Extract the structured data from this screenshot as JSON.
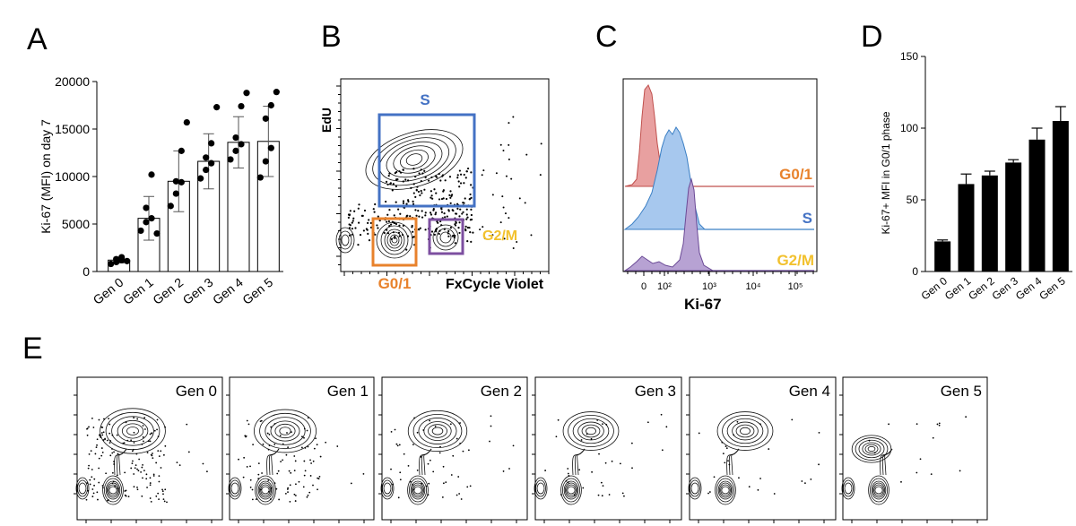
{
  "panel_labels": {
    "a": "A",
    "b": "B",
    "c": "C",
    "d": "D",
    "e": "E"
  },
  "colors": {
    "g01": "#E8822C",
    "s": "#4472C4",
    "g2m": "#F2C12E",
    "gate_g2m": "#7D4FA0",
    "hist_red": "#E8A0A0",
    "hist_red_line": "#C0504D",
    "hist_blue": "#A7C8EE",
    "hist_blue_line": "#3B7FC4",
    "hist_purple": "#B7A2D3",
    "hist_purple_line": "#6B4A96"
  },
  "chart_data": [
    {
      "id": "A",
      "type": "bar",
      "ylabel": "Ki-67 (MFI) on day 7",
      "xlabel": "",
      "ylim": [
        0,
        20000
      ],
      "yticks": [
        "0",
        "5000",
        "10000",
        "15000",
        "20000"
      ],
      "ytick_values": [
        0,
        5000,
        10000,
        15000,
        20000
      ],
      "categories": [
        "Gen 0",
        "Gen 1",
        "Gen 2",
        "Gen 3",
        "Gen 4",
        "Gen 5"
      ],
      "values": [
        1200,
        5600,
        9500,
        11600,
        13600,
        13700
      ],
      "errors": [
        300,
        2300,
        3200,
        2900,
        2700,
        3700
      ],
      "points": [
        [
          800,
          1000,
          1200,
          1300,
          1500,
          1100
        ],
        [
          4300,
          5200,
          5600,
          6700,
          10200,
          4000
        ],
        [
          6900,
          8200,
          9400,
          9500,
          12700,
          15700
        ],
        [
          9800,
          10700,
          11400,
          12000,
          13500,
          17300
        ],
        [
          11800,
          12700,
          13400,
          14100,
          17400,
          18800
        ],
        [
          9900,
          11600,
          13000,
          16100,
          17500,
          18900
        ]
      ]
    },
    {
      "id": "B",
      "type": "scatter",
      "xlabel": "FxCycle Violet",
      "ylabel": "EdU",
      "gates": [
        {
          "label": "S"
        },
        {
          "label": "G0/1"
        },
        {
          "label": "G2/M"
        }
      ]
    },
    {
      "id": "C",
      "type": "area",
      "xlabel": "Ki-67",
      "xticks": [
        "0",
        "10²",
        "10³",
        "10⁴",
        "10⁵"
      ],
      "series": [
        {
          "name": "G0/1"
        },
        {
          "name": "S"
        },
        {
          "name": "G2/M"
        }
      ]
    },
    {
      "id": "D",
      "type": "bar",
      "ylabel": "Ki-67+ MFI in G0/1 phase",
      "ylim": [
        0,
        150
      ],
      "yticks": [
        "0",
        "50",
        "100",
        "150"
      ],
      "ytick_values": [
        0,
        50,
        100,
        150
      ],
      "categories": [
        "Gen 0",
        "Gen 1",
        "Gen 2",
        "Gen 3",
        "Gen 4",
        "Gen 5"
      ],
      "values": [
        21,
        61,
        67,
        76,
        92,
        105
      ],
      "errors": [
        1,
        7,
        3,
        2,
        8,
        10
      ]
    },
    {
      "id": "E",
      "type": "scatter",
      "panels": [
        "Gen 0",
        "Gen 1",
        "Gen 2",
        "Gen 3",
        "Gen 4",
        "Gen 5"
      ]
    }
  ]
}
